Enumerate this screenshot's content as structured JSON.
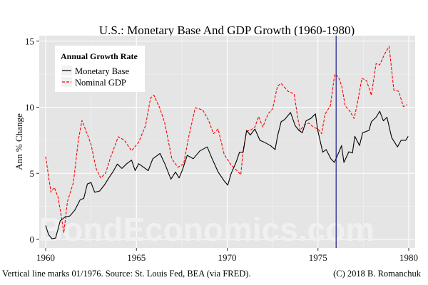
{
  "chart_data": {
    "type": "line",
    "title": "U.S.: Monetary Base And GDP Growth (1960-1980)",
    "xlabel": "",
    "ylabel": "Ann % Change",
    "xlim": [
      1960,
      1980
    ],
    "ylim": [
      -0.8,
      15.4
    ],
    "x_ticks": [
      "1960",
      "1965",
      "1970",
      "1975",
      "1980"
    ],
    "y_ticks": [
      "0",
      "5",
      "10",
      "15"
    ],
    "grid": true,
    "legend": {
      "title": "Annual Growth Rate",
      "placement": "top-left"
    },
    "vertical_line": {
      "x": 1976.0,
      "color": "#1a1a8c"
    },
    "series": [
      {
        "name": "Monetary Base",
        "color": "#000000",
        "style": "solid",
        "x": [
          1960.0,
          1960.16,
          1960.35,
          1960.55,
          1960.8,
          1961.07,
          1961.33,
          1961.6,
          1961.9,
          1962.1,
          1962.3,
          1962.5,
          1962.7,
          1962.97,
          1963.23,
          1963.5,
          1963.7,
          1963.95,
          1964.2,
          1964.47,
          1964.73,
          1964.93,
          1965.12,
          1965.39,
          1965.65,
          1965.9,
          1966.3,
          1966.56,
          1966.9,
          1967.15,
          1967.35,
          1967.54,
          1967.8,
          1968.13,
          1968.5,
          1968.9,
          1969.17,
          1969.5,
          1969.83,
          1970.03,
          1970.22,
          1970.48,
          1970.68,
          1970.88,
          1971.07,
          1971.27,
          1971.53,
          1971.8,
          1972.05,
          1972.38,
          1972.64,
          1972.77,
          1972.97,
          1973.16,
          1973.49,
          1973.75,
          1973.95,
          1974.14,
          1974.34,
          1974.6,
          1974.86,
          1974.99,
          1975.26,
          1975.45,
          1975.71,
          1975.9,
          1976.16,
          1976.3,
          1976.43,
          1976.7,
          1976.9,
          1977.03,
          1977.29,
          1977.46,
          1977.81,
          1977.94,
          1978.2,
          1978.4,
          1978.6,
          1978.8,
          1979.06,
          1979.38,
          1979.58,
          1979.84,
          1979.97
        ],
        "y": [
          1.05,
          0.36,
          0.05,
          0.1,
          1.4,
          1.7,
          1.77,
          2.2,
          3.0,
          3.1,
          4.2,
          4.3,
          3.57,
          3.66,
          4.1,
          4.7,
          5.1,
          5.7,
          5.37,
          5.73,
          6.0,
          5.2,
          5.73,
          5.46,
          5.2,
          6.1,
          6.5,
          5.73,
          4.56,
          5.1,
          4.65,
          5.28,
          6.36,
          6.1,
          6.7,
          7.0,
          6.1,
          5.1,
          4.43,
          4.1,
          5.0,
          5.8,
          6.6,
          6.6,
          8.25,
          7.9,
          8.35,
          7.5,
          7.35,
          7.1,
          6.8,
          7.8,
          8.9,
          9.06,
          9.6,
          8.6,
          8.25,
          8.07,
          8.97,
          9.15,
          9.5,
          8.25,
          6.6,
          6.8,
          6.1,
          5.82,
          6.63,
          7.1,
          5.82,
          6.63,
          6.54,
          7.8,
          7.1,
          8.07,
          8.25,
          8.9,
          9.24,
          9.7,
          8.97,
          9.24,
          7.7,
          7.0,
          7.5,
          7.5,
          7.8
        ]
      },
      {
        "name": "Nominal GDP",
        "color": "#ff0000",
        "style": "dashed",
        "x": [
          1960.0,
          1960.29,
          1960.48,
          1960.68,
          1960.88,
          1961.0,
          1961.2,
          1961.53,
          1961.8,
          1962.0,
          1962.25,
          1962.5,
          1962.77,
          1963.03,
          1963.3,
          1963.55,
          1964.0,
          1964.34,
          1964.73,
          1965.12,
          1965.5,
          1965.78,
          1965.97,
          1966.3,
          1966.56,
          1966.95,
          1967.28,
          1967.6,
          1967.87,
          1968.24,
          1968.65,
          1968.98,
          1969.24,
          1969.5,
          1969.83,
          1970.16,
          1970.42,
          1970.75,
          1970.88,
          1971.07,
          1971.33,
          1971.53,
          1971.73,
          1971.96,
          1972.25,
          1972.5,
          1972.77,
          1972.97,
          1973.36,
          1973.69,
          1973.89,
          1974.02,
          1974.28,
          1974.5,
          1974.74,
          1975.0,
          1975.2,
          1975.4,
          1975.68,
          1975.92,
          1976.12,
          1976.31,
          1976.5,
          1976.76,
          1976.99,
          1977.16,
          1977.42,
          1977.68,
          1977.94,
          1978.2,
          1978.4,
          1978.66,
          1978.92,
          1979.18,
          1979.45,
          1979.7,
          1979.9
        ],
        "y": [
          6.27,
          3.57,
          3.93,
          3.2,
          1.6,
          0.5,
          2.85,
          4.3,
          7.5,
          9.0,
          8.1,
          7.2,
          5.4,
          4.65,
          5.0,
          6.1,
          7.77,
          7.5,
          6.7,
          7.35,
          8.6,
          10.7,
          10.9,
          9.9,
          8.8,
          6.1,
          5.46,
          5.7,
          7.7,
          9.96,
          9.8,
          9.0,
          8.0,
          8.35,
          6.45,
          5.73,
          5.37,
          4.9,
          6.8,
          8.16,
          8.3,
          8.5,
          9.3,
          8.5,
          9.5,
          9.87,
          11.6,
          11.8,
          11.2,
          11.0,
          9.15,
          8.25,
          8.7,
          8.8,
          8.5,
          8.35,
          8.0,
          9.5,
          10.1,
          12.5,
          12.3,
          11.6,
          10.1,
          9.7,
          9.15,
          10.2,
          12.2,
          12.0,
          10.9,
          13.3,
          13.2,
          14.0,
          14.6,
          11.3,
          11.2,
          10.05,
          10.2
        ]
      }
    ]
  },
  "watermark": "BondEconomics.com",
  "footer": {
    "left": "Vertical line marks 01/1976. Source: St. Louis Fed, BEA (via FRED).",
    "right": "(C) 2018 B. Romanchuk"
  },
  "colors": {
    "panel": "#e5e5e5",
    "grid": "#ffffff"
  }
}
